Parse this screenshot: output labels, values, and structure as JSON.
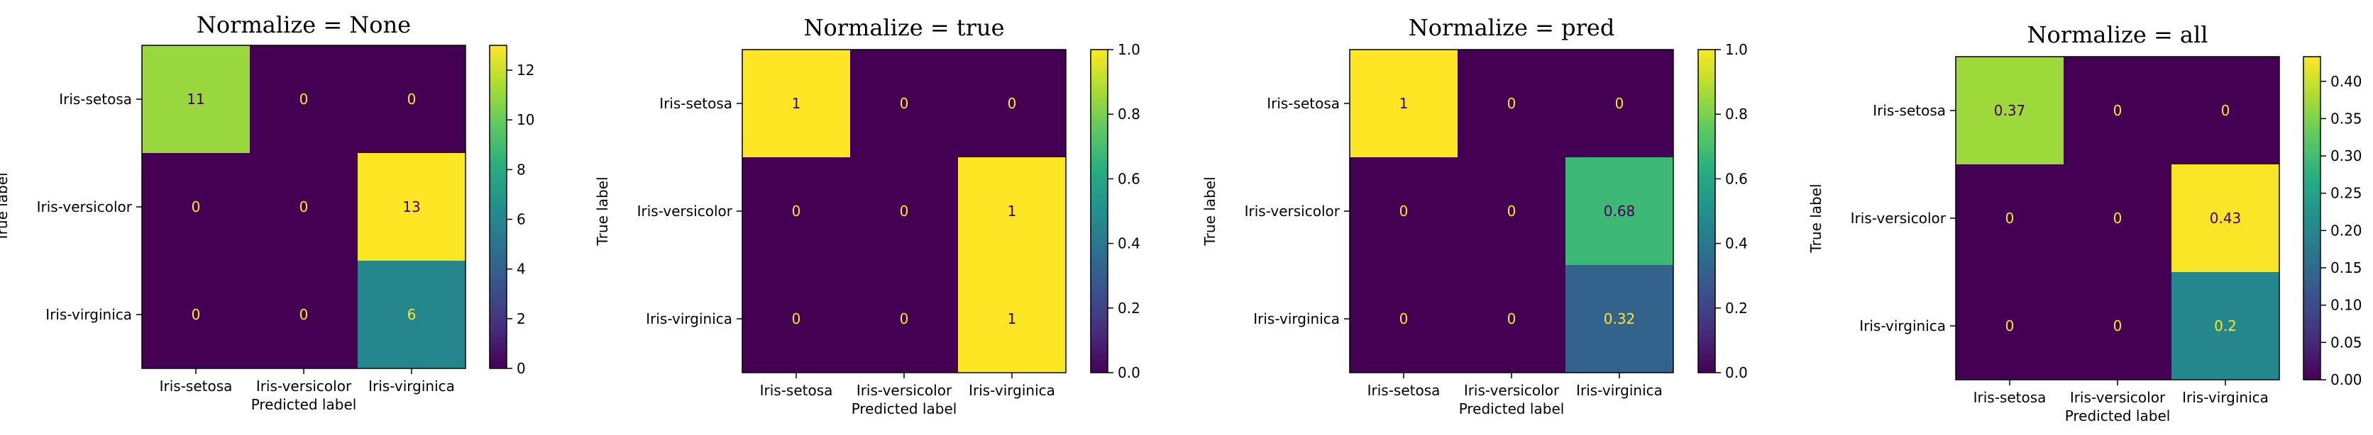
{
  "chart_data": [
    {
      "type": "heatmap",
      "title": "Normalize = None",
      "xlabel": "Predicted label",
      "ylabel": "True label",
      "x_categories": [
        "Iris-setosa",
        "Iris-versicolor",
        "Iris-virginica"
      ],
      "y_categories": [
        "Iris-setosa",
        "Iris-versicolor",
        "Iris-virginica"
      ],
      "values": [
        [
          11,
          0,
          0
        ],
        [
          0,
          0,
          13
        ],
        [
          0,
          0,
          6
        ]
      ],
      "labels": [
        [
          "11",
          "0",
          "0"
        ],
        [
          "0",
          "0",
          "13"
        ],
        [
          "0",
          "0",
          "6"
        ]
      ],
      "colorscale": "viridis",
      "vmin": 0,
      "vmax": 13,
      "colorbar_ticks": [
        "0",
        "2",
        "4",
        "6",
        "8",
        "10",
        "12"
      ],
      "colorbar_tick_values": [
        0,
        2,
        4,
        6,
        8,
        10,
        12
      ]
    },
    {
      "type": "heatmap",
      "title": "Normalize = true",
      "xlabel": "Predicted label",
      "ylabel": "True label",
      "x_categories": [
        "Iris-setosa",
        "Iris-versicolor",
        "Iris-virginica"
      ],
      "y_categories": [
        "Iris-setosa",
        "Iris-versicolor",
        "Iris-virginica"
      ],
      "values": [
        [
          1,
          0,
          0
        ],
        [
          0,
          0,
          1
        ],
        [
          0,
          0,
          1
        ]
      ],
      "labels": [
        [
          "1",
          "0",
          "0"
        ],
        [
          "0",
          "0",
          "1"
        ],
        [
          "0",
          "0",
          "1"
        ]
      ],
      "colorscale": "viridis",
      "vmin": 0,
      "vmax": 1,
      "colorbar_ticks": [
        "0.0",
        "0.2",
        "0.4",
        "0.6",
        "0.8",
        "1.0"
      ],
      "colorbar_tick_values": [
        0,
        0.2,
        0.4,
        0.6,
        0.8,
        1.0
      ]
    },
    {
      "type": "heatmap",
      "title": "Normalize = pred",
      "xlabel": "Predicted label",
      "ylabel": "True label",
      "x_categories": [
        "Iris-setosa",
        "Iris-versicolor",
        "Iris-virginica"
      ],
      "y_categories": [
        "Iris-setosa",
        "Iris-versicolor",
        "Iris-virginica"
      ],
      "values": [
        [
          1,
          0,
          0
        ],
        [
          0,
          0,
          0.68
        ],
        [
          0,
          0,
          0.32
        ]
      ],
      "labels": [
        [
          "1",
          "0",
          "0"
        ],
        [
          "0",
          "0",
          "0.68"
        ],
        [
          "0",
          "0",
          "0.32"
        ]
      ],
      "colorscale": "viridis",
      "vmin": 0,
      "vmax": 1,
      "colorbar_ticks": [
        "0.0",
        "0.2",
        "0.4",
        "0.6",
        "0.8",
        "1.0"
      ],
      "colorbar_tick_values": [
        0,
        0.2,
        0.4,
        0.6,
        0.8,
        1.0
      ]
    },
    {
      "type": "heatmap",
      "title": "Normalize = all",
      "xlabel": "Predicted label",
      "ylabel": "True label",
      "x_categories": [
        "Iris-setosa",
        "Iris-versicolor",
        "Iris-virginica"
      ],
      "y_categories": [
        "Iris-setosa",
        "Iris-versicolor",
        "Iris-virginica"
      ],
      "values": [
        [
          0.37,
          0,
          0
        ],
        [
          0,
          0,
          0.43
        ],
        [
          0,
          0,
          0.2
        ]
      ],
      "labels": [
        [
          "0.37",
          "0",
          "0"
        ],
        [
          "0",
          "0",
          "0.43"
        ],
        [
          "0",
          "0",
          "0.2"
        ]
      ],
      "colorscale": "viridis",
      "vmin": 0,
      "vmax": 0.433,
      "colorbar_ticks": [
        "0.00",
        "0.05",
        "0.10",
        "0.15",
        "0.20",
        "0.25",
        "0.30",
        "0.35",
        "0.40"
      ],
      "colorbar_tick_values": [
        0,
        0.05,
        0.1,
        0.15,
        0.2,
        0.25,
        0.3,
        0.35,
        0.4
      ]
    }
  ]
}
